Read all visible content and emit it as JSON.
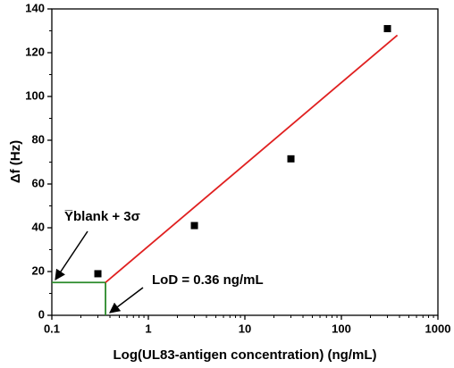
{
  "chart_data": {
    "type": "scatter",
    "x_label": "Log(UL83-antigen concentration) (ng/mL)",
    "y_label": "Δf (Hz)",
    "x": [
      0.3,
      3,
      30,
      300
    ],
    "values": [
      19,
      41,
      71.5,
      131
    ],
    "color": "#000000",
    "xscale": "log",
    "xlim": [
      0.1,
      1000
    ],
    "xticks": [
      0.1,
      1,
      10,
      100,
      1000
    ],
    "ylim": [
      0,
      140
    ],
    "yticks": [
      0,
      20,
      40,
      60,
      80,
      100,
      120,
      140
    ],
    "fit_line": {
      "x": [
        0.36,
        380
      ],
      "values": [
        15,
        128
      ],
      "color": "#e02020"
    },
    "lod_lines": {
      "x": [
        0.1,
        0.36,
        0.36
      ],
      "values": [
        15,
        15,
        0
      ],
      "color": "#2a8a2a"
    },
    "annotations": [
      "Y̅blank + 3σ",
      "LoD = 0.36 ng/mL"
    ]
  }
}
